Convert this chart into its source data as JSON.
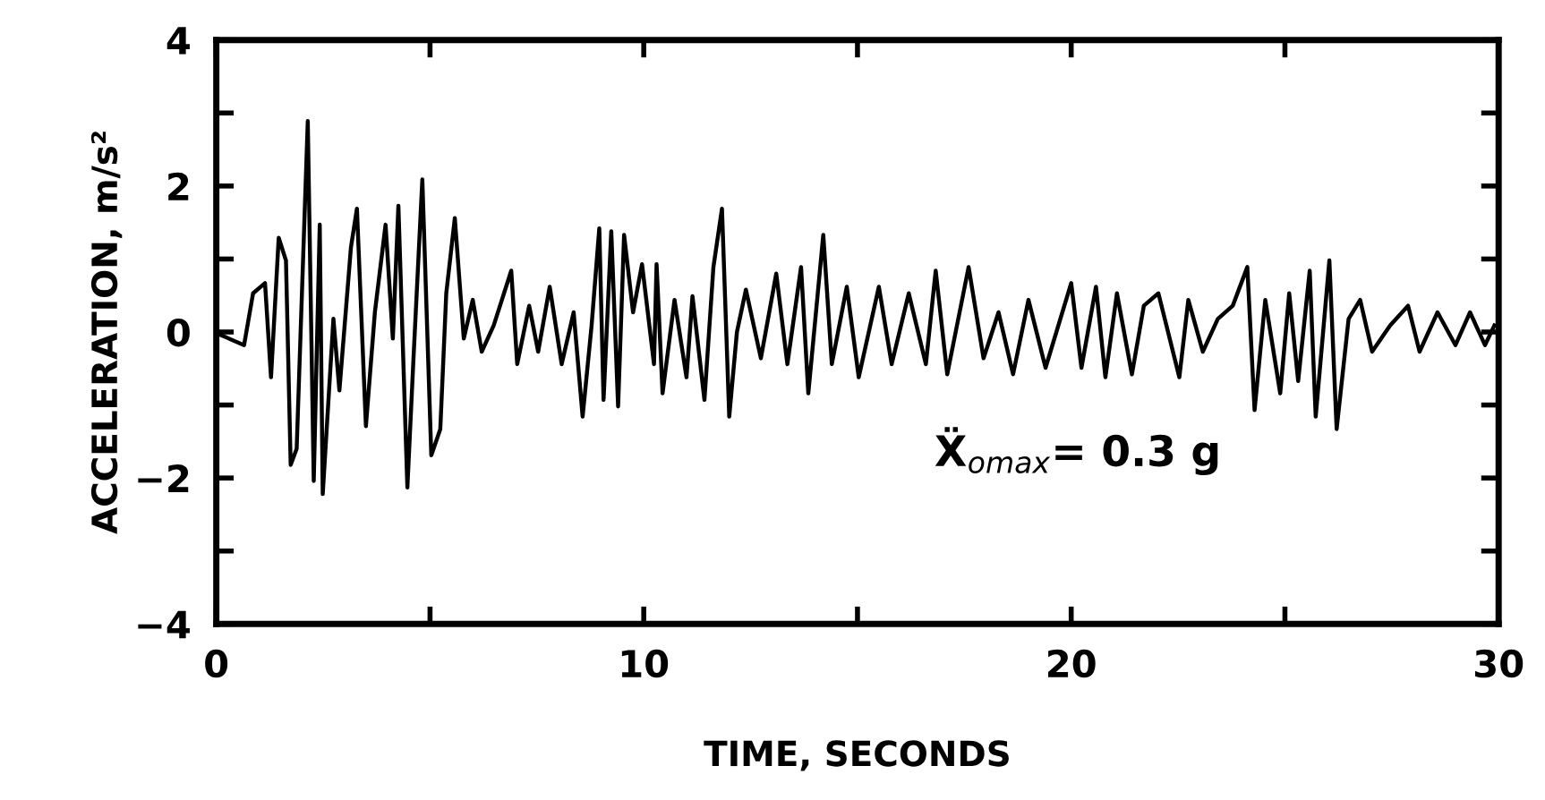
{
  "chart_data": {
    "type": "line",
    "xlabel": "TIME, SECONDS",
    "ylabel": "ACCELERATION, m/s²",
    "annotations": [
      "Ẍ$_{omax}$= 0.3 g"
    ],
    "xlim": [
      0,
      30
    ],
    "ylim": [
      -4,
      4
    ],
    "xticks": [
      0,
      {
        "value": 5,
        "label": null
      },
      10,
      {
        "value": 15,
        "label": null
      },
      20,
      {
        "value": 25,
        "label": null
      },
      30
    ],
    "yticks": [
      {
        "value": -4,
        "label": "−4"
      },
      {
        "value": -3,
        "label": null
      },
      {
        "value": -2,
        "label": "−2"
      },
      {
        "value": -1,
        "label": null
      },
      0,
      {
        "value": 1,
        "label": null
      },
      2,
      {
        "value": 3,
        "label": null
      },
      4
    ],
    "grid": false,
    "marker": "none",
    "line_style": "solid",
    "series": [
      {
        "color": "#000000",
        "x": [
          0.1,
          0.65,
          0.86,
          1.14,
          1.28,
          1.46,
          1.63,
          1.74,
          1.88,
          2.14,
          2.28,
          2.42,
          2.49,
          2.74,
          2.88,
          3.15,
          3.29,
          3.5,
          3.71,
          3.96,
          4.13,
          4.26,
          4.47,
          4.61,
          4.82,
          5.03,
          5.24,
          5.38,
          5.58,
          5.79,
          6.0,
          6.21,
          6.49,
          6.9,
          7.04,
          7.32,
          7.53,
          7.8,
          8.08,
          8.36,
          8.57,
          8.78,
          8.96,
          9.06,
          9.24,
          9.4,
          9.54,
          9.75,
          9.96,
          10.24,
          10.3,
          10.44,
          10.72,
          11.0,
          11.14,
          11.42,
          11.63,
          11.83,
          12.0,
          12.18,
          12.39,
          12.74,
          13.1,
          13.36,
          13.68,
          13.85,
          14.2,
          14.4,
          14.75,
          15.03,
          15.5,
          15.8,
          16.2,
          16.6,
          16.83,
          17.1,
          17.6,
          17.95,
          18.3,
          18.64,
          19.0,
          19.4,
          20.0,
          20.24,
          20.58,
          20.8,
          21.07,
          21.42,
          21.7,
          22.04,
          22.53,
          22.74,
          23.08,
          23.43,
          23.78,
          24.12,
          24.29,
          24.54,
          24.89,
          25.1,
          25.31,
          25.58,
          25.72,
          26.04,
          26.21,
          26.49,
          26.76,
          27.04,
          27.46,
          27.88,
          28.15,
          28.57,
          28.99,
          29.33,
          29.68,
          29.9
        ],
        "values": [
          -0.04,
          -0.18,
          0.53,
          0.67,
          -0.62,
          1.29,
          0.98,
          -1.82,
          -1.6,
          2.89,
          -2.04,
          1.47,
          -2.22,
          0.18,
          -0.8,
          1.16,
          1.69,
          -1.29,
          0.27,
          1.47,
          -0.09,
          1.73,
          -2.13,
          -0.4,
          2.09,
          -1.69,
          -1.33,
          0.53,
          1.56,
          -0.09,
          0.44,
          -0.27,
          0.09,
          0.84,
          -0.44,
          0.36,
          -0.27,
          0.62,
          -0.44,
          0.27,
          -1.16,
          0.09,
          1.42,
          -0.93,
          1.38,
          -1.02,
          1.33,
          0.27,
          0.93,
          -0.44,
          0.93,
          -0.84,
          0.44,
          -0.62,
          0.49,
          -0.93,
          0.89,
          1.69,
          -1.16,
          0,
          0.58,
          -0.36,
          0.8,
          -0.44,
          0.89,
          -0.84,
          1.33,
          -0.44,
          0.62,
          -0.62,
          0.62,
          -0.44,
          0.53,
          -0.44,
          0.84,
          -0.58,
          0.89,
          -0.36,
          0.27,
          -0.58,
          0.44,
          -0.49,
          0.67,
          -0.49,
          0.62,
          -0.62,
          0.53,
          -0.58,
          0.36,
          0.53,
          -0.62,
          0.44,
          -0.27,
          0.18,
          0.36,
          0.89,
          -1.07,
          0.44,
          -0.84,
          0.53,
          -0.67,
          0.84,
          -1.16,
          0.98,
          -1.33,
          0.18,
          0.44,
          -0.27,
          0.09,
          0.36,
          -0.27,
          0.27,
          -0.18,
          0.27,
          -0.18,
          0.09
        ]
      }
    ]
  }
}
